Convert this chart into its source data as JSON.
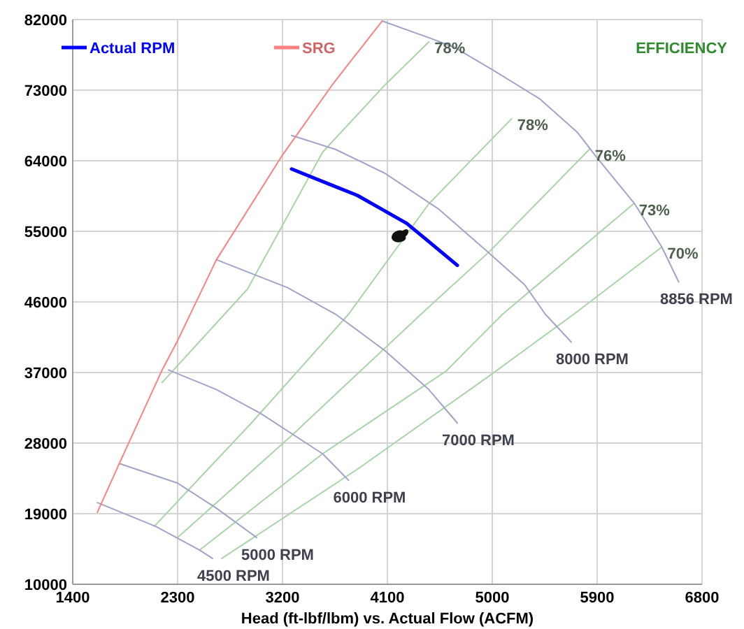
{
  "chart_data": {
    "type": "line",
    "xlabel": "Head (ft-lbf/lbm) vs. Actual Flow (ACFM)",
    "xlim": [
      1400,
      6800
    ],
    "xticks": [
      1400,
      2300,
      3200,
      4100,
      5000,
      5900,
      6800
    ],
    "ylim": [
      10000,
      82000
    ],
    "yticks": [
      10000,
      19000,
      28000,
      37000,
      46000,
      55000,
      64000,
      73000,
      82000
    ],
    "grid": true,
    "legend": "top",
    "annotations": [
      "EFFICIENCY"
    ],
    "series": [
      {
        "name": "Actual RPM",
        "color": "#0000ff",
        "x": [
          3278,
          3633,
          3844,
          4055,
          4266,
          4455,
          4700
        ],
        "values": [
          62950,
          60820,
          59570,
          57790,
          56010,
          53700,
          50670
        ]
      },
      {
        "name": "SRG",
        "color": "#ff8080",
        "x": [
          1611,
          1800,
          2167,
          2300,
          2633,
          3200,
          3633,
          4055
        ],
        "values": [
          19170,
          25400,
          37320,
          41060,
          51380,
          64730,
          73800,
          81820
        ]
      },
      {
        "name": "8856 RPM",
        "color": "#a0a4c8",
        "x": [
          4055,
          4455,
          4677,
          5022,
          5411,
          5733,
          5889,
          6222,
          6455,
          6600
        ],
        "values": [
          81820,
          79690,
          78440,
          75410,
          71850,
          67580,
          64560,
          58500,
          52990,
          48540
        ]
      },
      {
        "name": "8000 RPM",
        "color": "#a0a4c8",
        "x": [
          3278,
          3655,
          4077,
          4544,
          4955,
          5278,
          5455,
          5678
        ],
        "values": [
          67230,
          65450,
          62420,
          57790,
          52450,
          48180,
          44440,
          40880
        ]
      },
      {
        "name": "7000 RPM",
        "color": "#a0a4c8",
        "x": [
          2633,
          3244,
          3655,
          4077,
          4455,
          4700
        ],
        "values": [
          51380,
          47820,
          44440,
          39810,
          34830,
          30560
        ]
      },
      {
        "name": "6000 RPM",
        "color": "#a0a4c8",
        "x": [
          2222,
          2633,
          3011,
          3544,
          3767
        ],
        "values": [
          37320,
          34830,
          31800,
          26640,
          23260
        ]
      },
      {
        "name": "5000 RPM",
        "color": "#a0a4c8",
        "x": [
          1800,
          2300,
          2633,
          2978
        ],
        "values": [
          25400,
          22900,
          19700,
          15960
        ]
      },
      {
        "name": "4500 RPM",
        "color": "#a0a4c8",
        "x": [
          1611,
          2111,
          2489,
          2600
        ],
        "values": [
          20410,
          17390,
          14360,
          13290
        ]
      },
      {
        "name": "78%",
        "color": "#a8d4a8",
        "x": [
          2167,
          2900,
          3544,
          4077,
          4455
        ],
        "values": [
          35720,
          47650,
          65090,
          73630,
          79150
        ]
      },
      {
        "name": "78%",
        "color": "#a8d4a8",
        "x": [
          2100,
          2933,
          3767,
          4455,
          5166
        ],
        "values": [
          17390,
          30560,
          44440,
          58500,
          69360
        ]
      },
      {
        "name": "76%",
        "color": "#a8d4a8",
        "x": [
          2300,
          3278,
          4389,
          4978,
          5833
        ],
        "values": [
          15960,
          28960,
          44440,
          52450,
          65450
        ]
      },
      {
        "name": "73%",
        "color": "#a8d4a8",
        "x": [
          2489,
          3544,
          4600,
          5089,
          6211
        ],
        "values": [
          14360,
          26640,
          37140,
          44440,
          58500
        ]
      },
      {
        "name": "70%",
        "color": "#a8d4a8",
        "x": [
          2678,
          3844,
          4978,
          5700,
          6455
        ],
        "values": [
          13290,
          24680,
          36610,
          44440,
          52990
        ]
      }
    ]
  }
}
